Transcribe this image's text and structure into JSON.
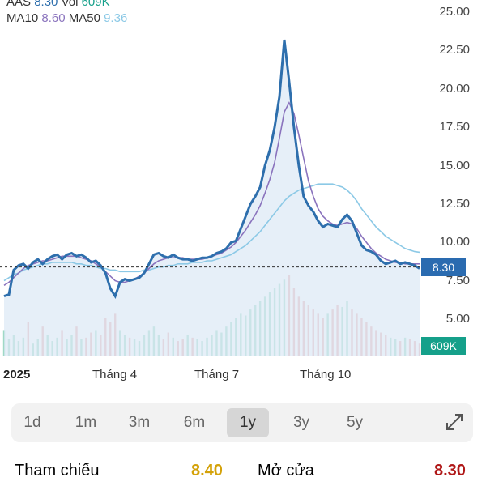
{
  "legend": {
    "line1": {
      "ticker": "AAS",
      "price": "8.30",
      "vol_label": "Vol",
      "vol": "609K"
    },
    "line2": {
      "ma10_label": "MA10",
      "ma10": "8.60",
      "ma50_label": "MA50",
      "ma50": "9.36"
    }
  },
  "colors": {
    "price_line": "#2e6fad",
    "ma10": "#8a73bd",
    "ma50": "#8cc9e6",
    "volume_up": "#5fbf9f",
    "volume_down": "#e07a7a"
  },
  "price_tag": "8.30",
  "volume_tag": "609K",
  "x_labels": [
    "2025",
    "Tháng 4",
    "Tháng 7",
    "Tháng 10"
  ],
  "range_tabs": [
    "1d",
    "1m",
    "3m",
    "6m",
    "1y",
    "3y",
    "5y"
  ],
  "active_range": "1y",
  "info": {
    "ref_label": "Tham chiếu",
    "ref_value": "8.40",
    "open_label": "Mở cửa",
    "open_value": "8.30"
  },
  "chart_data": {
    "type": "line",
    "y_ticks": [
      "25.00",
      "22.50",
      "20.00",
      "17.50",
      "15.00",
      "12.50",
      "10.00",
      "7.50",
      "5.00"
    ],
    "ylim": [
      5,
      25
    ],
    "reference_price": 8.4,
    "series": [
      {
        "name": "AAS",
        "values": [
          6.5,
          6.6,
          8.2,
          8.5,
          8.6,
          8.3,
          8.7,
          8.9,
          8.6,
          8.9,
          9.1,
          9.2,
          8.9,
          9.2,
          9.3,
          9.1,
          9.2,
          9.0,
          8.7,
          8.8,
          8.5,
          8.0,
          7.0,
          6.5,
          7.4,
          7.6,
          7.5,
          7.6,
          7.7,
          8.0,
          8.6,
          9.2,
          9.3,
          9.1,
          9.0,
          9.2,
          9.0,
          8.9,
          8.9,
          8.8,
          8.9,
          9.0,
          9.0,
          9.1,
          9.3,
          9.4,
          9.6,
          10.0,
          10.1,
          10.9,
          11.7,
          12.5,
          13.0,
          13.6,
          15.0,
          16.0,
          17.5,
          19.5,
          23.2,
          20.5,
          17.5,
          15.0,
          13.0,
          12.4,
          12.0,
          11.4,
          11.0,
          11.2,
          11.1,
          11.0,
          11.5,
          11.8,
          11.4,
          10.6,
          9.8,
          9.5,
          9.4,
          9.2,
          8.8,
          8.6,
          8.7,
          8.8,
          8.6,
          8.7,
          8.6,
          8.5,
          8.3
        ]
      },
      {
        "name": "MA10",
        "values": [
          7.2,
          7.4,
          7.7,
          8.0,
          8.3,
          8.5,
          8.6,
          8.7,
          8.8,
          8.8,
          8.9,
          9.0,
          9.1,
          9.1,
          9.1,
          9.1,
          9.0,
          8.9,
          8.8,
          8.6,
          8.4,
          8.1,
          7.8,
          7.5,
          7.4,
          7.4,
          7.5,
          7.6,
          7.8,
          8.0,
          8.3,
          8.6,
          8.8,
          8.9,
          9.0,
          9.0,
          9.0,
          9.0,
          8.9,
          8.9,
          8.9,
          8.9,
          9.0,
          9.1,
          9.2,
          9.3,
          9.5,
          9.7,
          10.0,
          10.4,
          10.8,
          11.3,
          11.8,
          12.4,
          13.2,
          14.1,
          15.2,
          16.8,
          18.5,
          19.1,
          18.4,
          17.0,
          15.5,
          14.0,
          13.0,
          12.2,
          11.7,
          11.4,
          11.2,
          11.1,
          11.2,
          11.3,
          11.2,
          10.9,
          10.4,
          10.0,
          9.6,
          9.3,
          9.1,
          8.9,
          8.8,
          8.7,
          8.7,
          8.6,
          8.6,
          8.6,
          8.6
        ]
      },
      {
        "name": "MA50",
        "values": [
          7.5,
          7.7,
          7.9,
          8.0,
          8.2,
          8.3,
          8.4,
          8.5,
          8.6,
          8.6,
          8.7,
          8.7,
          8.7,
          8.7,
          8.7,
          8.6,
          8.6,
          8.5,
          8.5,
          8.4,
          8.3,
          8.3,
          8.2,
          8.2,
          8.1,
          8.1,
          8.1,
          8.1,
          8.1,
          8.2,
          8.2,
          8.3,
          8.4,
          8.4,
          8.5,
          8.5,
          8.6,
          8.6,
          8.6,
          8.7,
          8.7,
          8.7,
          8.8,
          8.8,
          8.9,
          9.0,
          9.1,
          9.2,
          9.4,
          9.6,
          9.8,
          10.1,
          10.4,
          10.7,
          11.1,
          11.5,
          11.9,
          12.3,
          12.7,
          13.0,
          13.2,
          13.4,
          13.5,
          13.6,
          13.7,
          13.8,
          13.8,
          13.8,
          13.8,
          13.7,
          13.6,
          13.4,
          13.1,
          12.7,
          12.2,
          11.8,
          11.4,
          11.0,
          10.7,
          10.4,
          10.2,
          10.0,
          9.8,
          9.6,
          9.5,
          9.4,
          9.36
        ]
      }
    ],
    "volume": [
      30,
      20,
      25,
      18,
      22,
      40,
      15,
      20,
      35,
      25,
      18,
      22,
      30,
      20,
      25,
      35,
      20,
      22,
      28,
      30,
      25,
      45,
      40,
      50,
      30,
      25,
      22,
      20,
      18,
      25,
      30,
      35,
      25,
      20,
      28,
      22,
      18,
      20,
      25,
      22,
      20,
      18,
      22,
      25,
      30,
      28,
      35,
      40,
      45,
      50,
      48,
      55,
      60,
      65,
      70,
      75,
      80,
      85,
      90,
      95,
      80,
      70,
      65,
      60,
      55,
      50,
      45,
      50,
      55,
      60,
      58,
      65,
      55,
      50,
      45,
      40,
      35,
      30,
      28,
      25,
      22,
      20,
      18,
      22,
      20,
      18,
      15
    ]
  }
}
